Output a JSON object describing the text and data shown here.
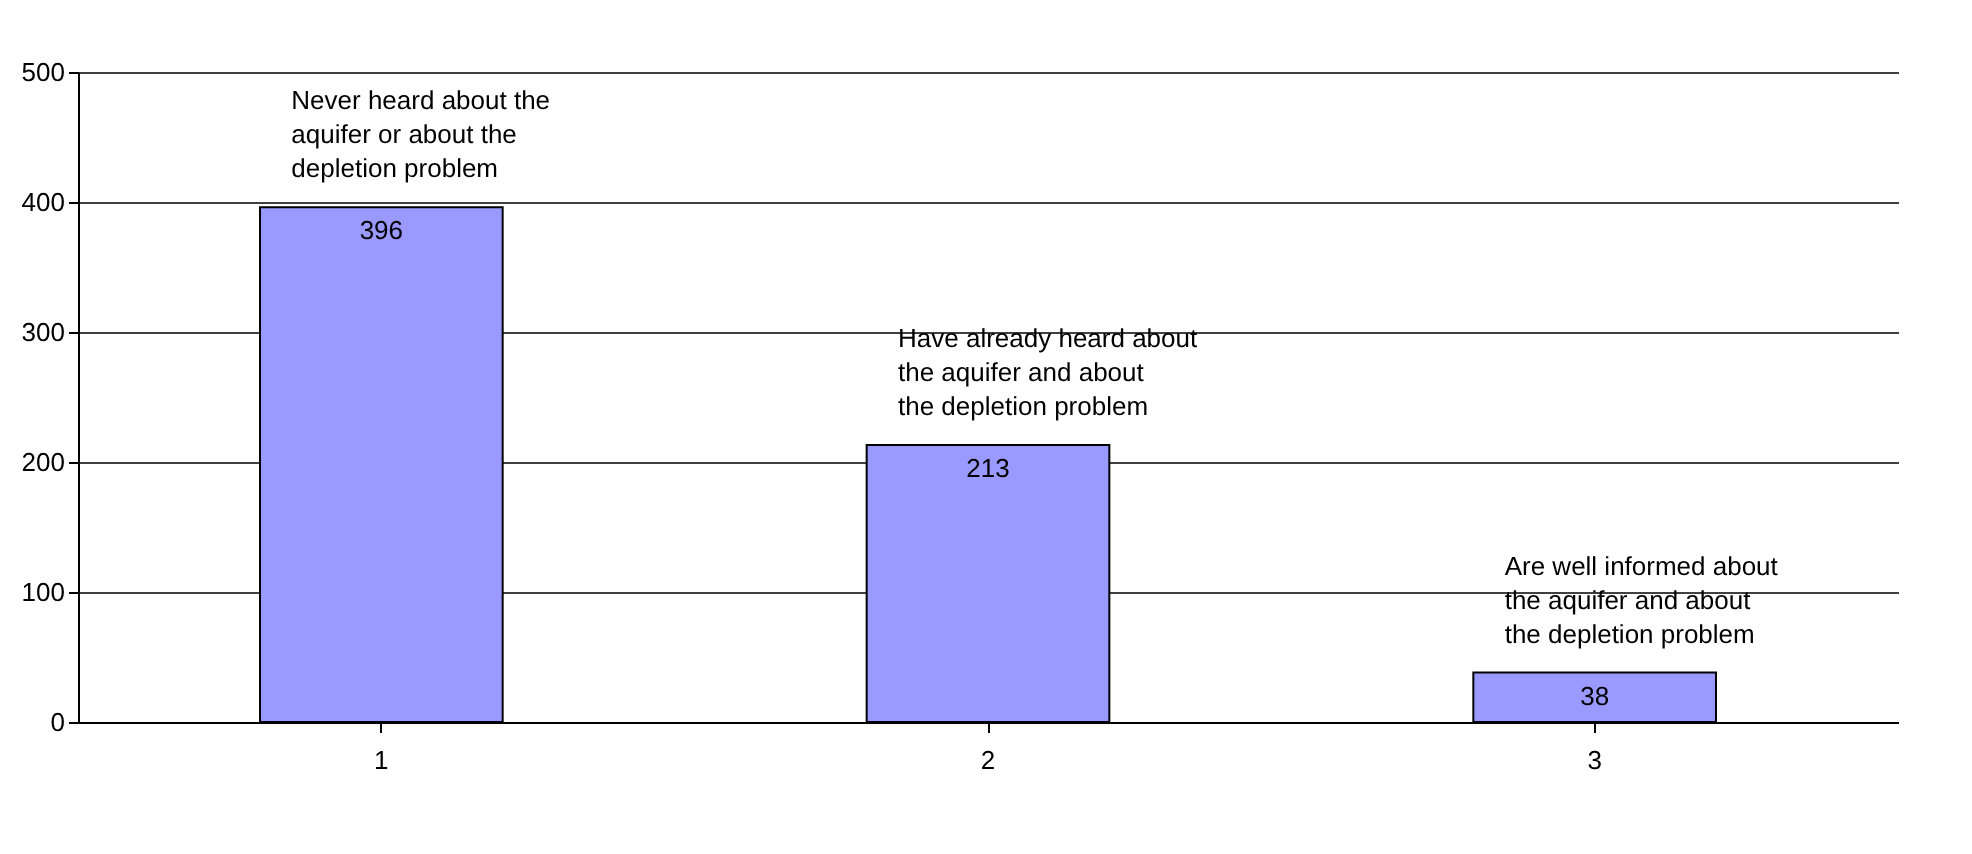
{
  "chart_data": {
    "type": "bar",
    "categories": [
      "1",
      "2",
      "3"
    ],
    "values": [
      396,
      213,
      38
    ],
    "color": "#9999ff",
    "data_labels": true,
    "ylim": [
      0,
      500
    ],
    "yticks": [
      0,
      100,
      200,
      300,
      400,
      500
    ],
    "grid": "y",
    "annotations": [
      {
        "text": "Never heard about the aquifer or about the depletion problem",
        "x": "1",
        "y": 396
      },
      {
        "text": "Have already heard about the aquifer and about the depletion problem",
        "x": "2",
        "y": 213
      },
      {
        "text": "Are well informed about the aquifer and about the depletion problem",
        "x": "3",
        "y": 38
      }
    ]
  }
}
